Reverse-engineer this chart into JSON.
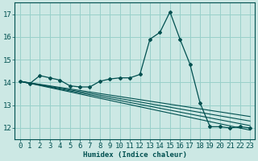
{
  "background_color": "#cce8e4",
  "grid_color": "#99d0ca",
  "line_color": "#005050",
  "xlabel": "Humidex (Indice chaleur)",
  "xlim": [
    -0.5,
    23.5
  ],
  "ylim": [
    11.5,
    17.5
  ],
  "yticks": [
    12,
    13,
    14,
    15,
    16,
    17
  ],
  "xticks": [
    0,
    1,
    2,
    3,
    4,
    5,
    6,
    7,
    8,
    9,
    10,
    11,
    12,
    13,
    14,
    15,
    16,
    17,
    18,
    19,
    20,
    21,
    22,
    23
  ],
  "main_series": [
    14.05,
    13.95,
    14.3,
    14.2,
    14.1,
    13.85,
    13.8,
    13.8,
    14.05,
    14.15,
    14.2,
    14.2,
    14.35,
    15.9,
    16.2,
    17.1,
    15.9,
    14.8,
    13.1,
    12.05,
    12.05,
    12.0,
    12.05,
    12.0
  ],
  "trend_lines": [
    {
      "x0": 0,
      "y0": 14.05,
      "x1": 23,
      "y1": 12.5
    },
    {
      "x0": 0,
      "y0": 14.05,
      "x1": 23,
      "y1": 12.3
    },
    {
      "x0": 0,
      "y0": 14.05,
      "x1": 23,
      "y1": 12.1
    },
    {
      "x0": 0,
      "y0": 14.05,
      "x1": 23,
      "y1": 11.9
    }
  ],
  "marker_indices": [
    0,
    1,
    2,
    3,
    4,
    5,
    6,
    7,
    8,
    9,
    10,
    11,
    12,
    13,
    14,
    15,
    16,
    17,
    18,
    19,
    20,
    21,
    22,
    23
  ],
  "xlabel_fontsize": 6.5,
  "tick_fontsize": 6.5
}
